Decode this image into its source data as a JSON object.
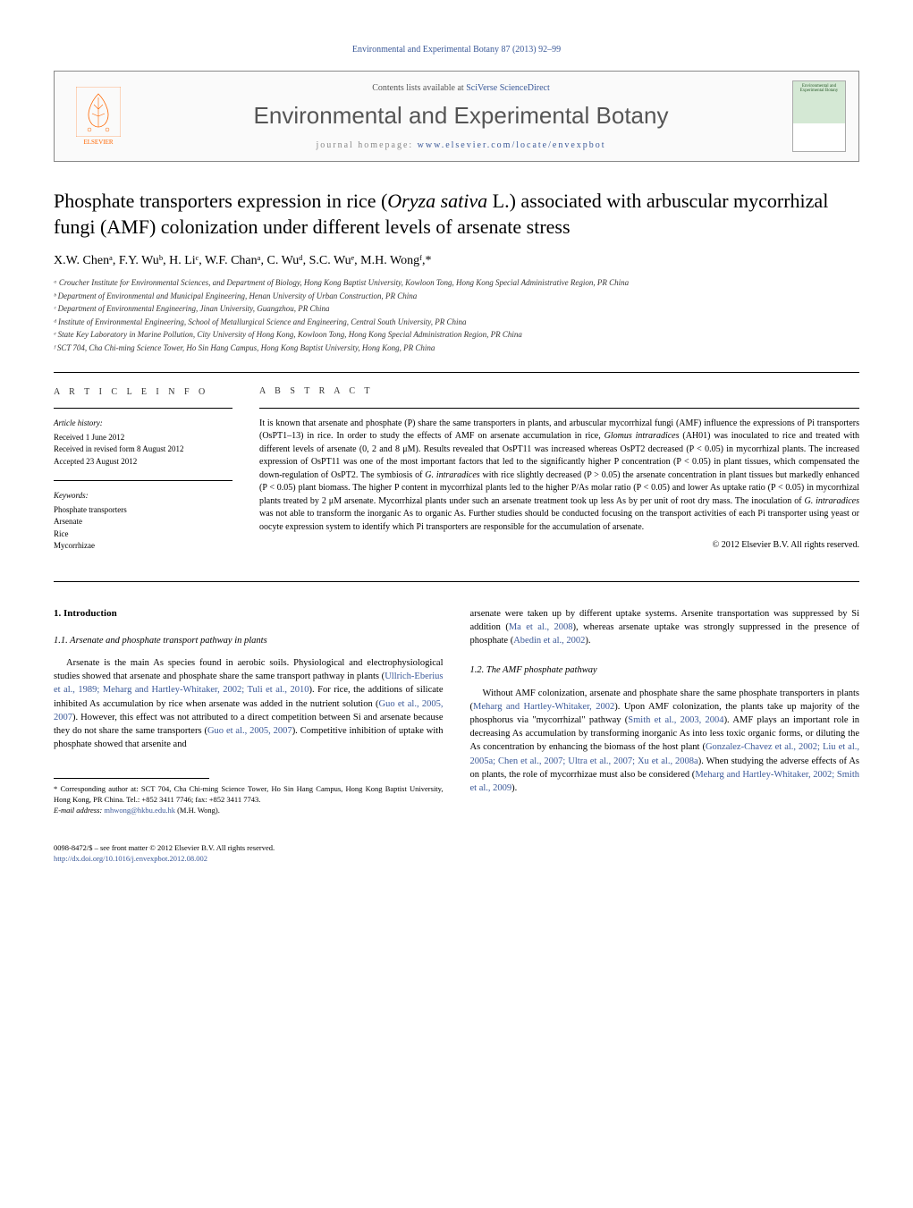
{
  "header": {
    "top_link": "Environmental and Experimental Botany 87 (2013) 92–99",
    "contents_prefix": "Contents lists available at ",
    "contents_link": "SciVerse ScienceDirect",
    "journal_name": "Environmental and Experimental Botany",
    "homepage_prefix": "journal homepage: ",
    "homepage_link": "www.elsevier.com/locate/envexpbot",
    "elsevier_label": "ELSEVIER",
    "cover_caption": "Environmental and Experimental Botany"
  },
  "title_parts": {
    "pre": "Phosphate transporters expression in rice (",
    "ital": "Oryza sativa",
    "post": " L.) associated with arbuscular mycorrhizal fungi (AMF) colonization under different levels of arsenate stress"
  },
  "authors": "X.W. Chenᵃ, F.Y. Wuᵇ, H. Liᶜ, W.F. Chanᵃ, C. Wuᵈ, S.C. Wuᵉ, M.H. Wongᶠ,*",
  "affiliations": [
    "ᵃ Croucher Institute for Environmental Sciences, and Department of Biology, Hong Kong Baptist University, Kowloon Tong, Hong Kong Special Administrative Region, PR China",
    "ᵇ Department of Environmental and Municipal Engineering, Henan University of Urban Construction, PR China",
    "ᶜ Department of Environmental Engineering, Jinan University, Guangzhou, PR China",
    "ᵈ Institute of Environmental Engineering, School of Metallurgical Science and Engineering, Central South University, PR China",
    "ᵉ State Key Laboratory in Marine Pollution, City University of Hong Kong, Kowloon Tong, Hong Kong Special Administration Region, PR China",
    "ᶠ SCT 704, Cha Chi-ming Science Tower, Ho Sin Hang Campus, Hong Kong Baptist University, Hong Kong, PR China"
  ],
  "article_info": {
    "label": "a r t i c l e   i n f o",
    "history_heading": "Article history:",
    "history": [
      "Received 1 June 2012",
      "Received in revised form 8 August 2012",
      "Accepted 23 August 2012"
    ],
    "keywords_heading": "Keywords:",
    "keywords": [
      "Phosphate transporters",
      "Arsenate",
      "Rice",
      "Mycorrhizae"
    ]
  },
  "abstract": {
    "label": "a b s t r a c t",
    "text_parts": [
      {
        "t": "It is known that arsenate and phosphate (P) share the same transporters in plants, and arbuscular mycorrhizal fungi (AMF) influence the expressions of Pi transporters (OsPT1–13) in rice. In order to study the effects of AMF on arsenate accumulation in rice, "
      },
      {
        "i": "Glomus intraradices"
      },
      {
        "t": " (AH01) was inoculated to rice and treated with different levels of arsenate (0, 2 and 8 μM). Results revealed that OsPT11 was increased whereas OsPT2 decreased (P < 0.05) in mycorrhizal plants. The increased expression of OsPT11 was one of the most important factors that led to the significantly higher P concentration (P < 0.05) in plant tissues, which compensated the down-regulation of OsPT2. The symbiosis of "
      },
      {
        "i": "G. intraradices"
      },
      {
        "t": " with rice slightly decreased (P > 0.05) the arsenate concentration in plant tissues but markedly enhanced (P < 0.05) plant biomass. The higher P content in mycorrhizal plants led to the higher P/As molar ratio (P < 0.05) and lower As uptake ratio (P < 0.05) in mycorrhizal plants treated by 2 μM arsenate. Mycorrhizal plants under such an arsenate treatment took up less As by per unit of root dry mass. The inoculation of "
      },
      {
        "i": "G. intraradices"
      },
      {
        "t": " was not able to transform the inorganic As to organic As. Further studies should be conducted focusing on the transport activities of each Pi transporter using yeast or oocyte expression system to identify which Pi transporters are responsible for the accumulation of arsenate."
      }
    ],
    "copyright": "© 2012 Elsevier B.V. All rights reserved."
  },
  "body": {
    "h1": "1.  Introduction",
    "s11_h": "1.1.  Arsenate and phosphate transport pathway in plants",
    "s11_p1_parts": [
      {
        "t": "Arsenate is the main As species found in aerobic soils. Physiological and electrophysiological studies showed that arsenate and phosphate share the same transport pathway in plants ("
      },
      {
        "r": "Ullrich-Eberius et al., 1989; Meharg and Hartley-Whitaker, 2002; Tuli et al., 2010"
      },
      {
        "t": "). For rice, the additions of silicate inhibited As accumulation by rice when arsenate was added in the nutrient solution ("
      },
      {
        "r": "Guo et al., 2005, 2007"
      },
      {
        "t": "). However, this effect was not attributed to a direct competition between Si and arsenate because they do not share the same transporters ("
      },
      {
        "r": "Guo et al., 2005, 2007"
      },
      {
        "t": "). Competitive inhibition of uptake with phosphate showed that arsenite and"
      }
    ],
    "s11_p2_parts": [
      {
        "t": "arsenate were taken up by different uptake systems. Arsenite transportation was suppressed by Si addition ("
      },
      {
        "r": "Ma et al., 2008"
      },
      {
        "t": "), whereas arsenate uptake was strongly suppressed in the presence of phosphate ("
      },
      {
        "r": "Abedin et al., 2002"
      },
      {
        "t": ")."
      }
    ],
    "s12_h": "1.2.  The AMF phosphate pathway",
    "s12_p1_parts": [
      {
        "t": "Without AMF colonization, arsenate and phosphate share the same phosphate transporters in plants ("
      },
      {
        "r": "Meharg and Hartley-Whitaker, 2002"
      },
      {
        "t": "). Upon AMF colonization, the plants take up majority of the phosphorus via \"mycorrhizal\" pathway ("
      },
      {
        "r": "Smith et al., 2003, 2004"
      },
      {
        "t": "). AMF plays an important role in decreasing As accumulation by transforming inorganic As into less toxic organic forms, or diluting the As concentration by enhancing the biomass of the host plant ("
      },
      {
        "r": "Gonzalez-Chavez et al., 2002; Liu et al., 2005a; Chen et al., 2007; Ultra et al., 2007; Xu et al., 2008a"
      },
      {
        "t": "). When studying the adverse effects of As on plants, the role of mycorrhizae must also be considered ("
      },
      {
        "r": "Meharg and Hartley-Whitaker, 2002; Smith et al., 2009"
      },
      {
        "t": ")."
      }
    ]
  },
  "footnote": {
    "corr": "* Corresponding author at: SCT 704, Cha Chi-ming Science Tower, Ho Sin Hang Campus, Hong Kong Baptist University, Hong Kong, PR China. Tel.: +852 3411 7746; fax: +852 3411 7743.",
    "email_label": "E-mail address: ",
    "email": "mhwong@hkbu.edu.hk",
    "email_suffix": " (M.H. Wong)."
  },
  "footer": {
    "line1": "0098-8472/$ – see front matter © 2012 Elsevier B.V. All rights reserved.",
    "doi": "http://dx.doi.org/10.1016/j.envexpbot.2012.08.002"
  },
  "colors": {
    "link": "#3b5998",
    "elsevier": "#ff6600",
    "text": "#000000"
  }
}
